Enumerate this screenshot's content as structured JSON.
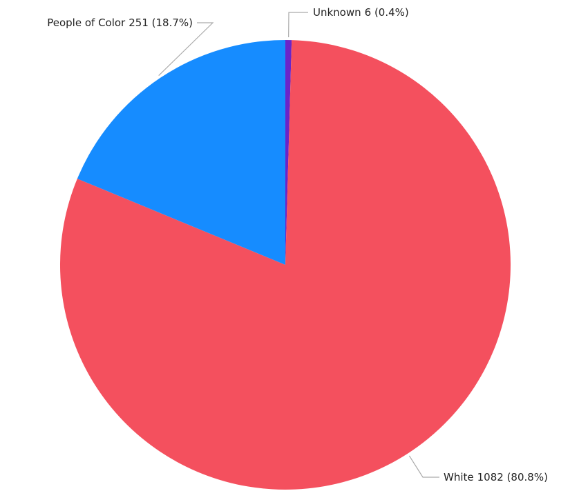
{
  "chart_data": {
    "type": "pie",
    "categories": [
      "Unknown",
      "White",
      "People of Color"
    ],
    "values": [
      6,
      1082,
      251
    ],
    "value_labels": [
      "6 (0.4%)",
      "1082 (80.8%)",
      "251 (18.7%)"
    ],
    "colors": [
      "#6a24c8",
      "#f4505e",
      "#168cff"
    ]
  }
}
